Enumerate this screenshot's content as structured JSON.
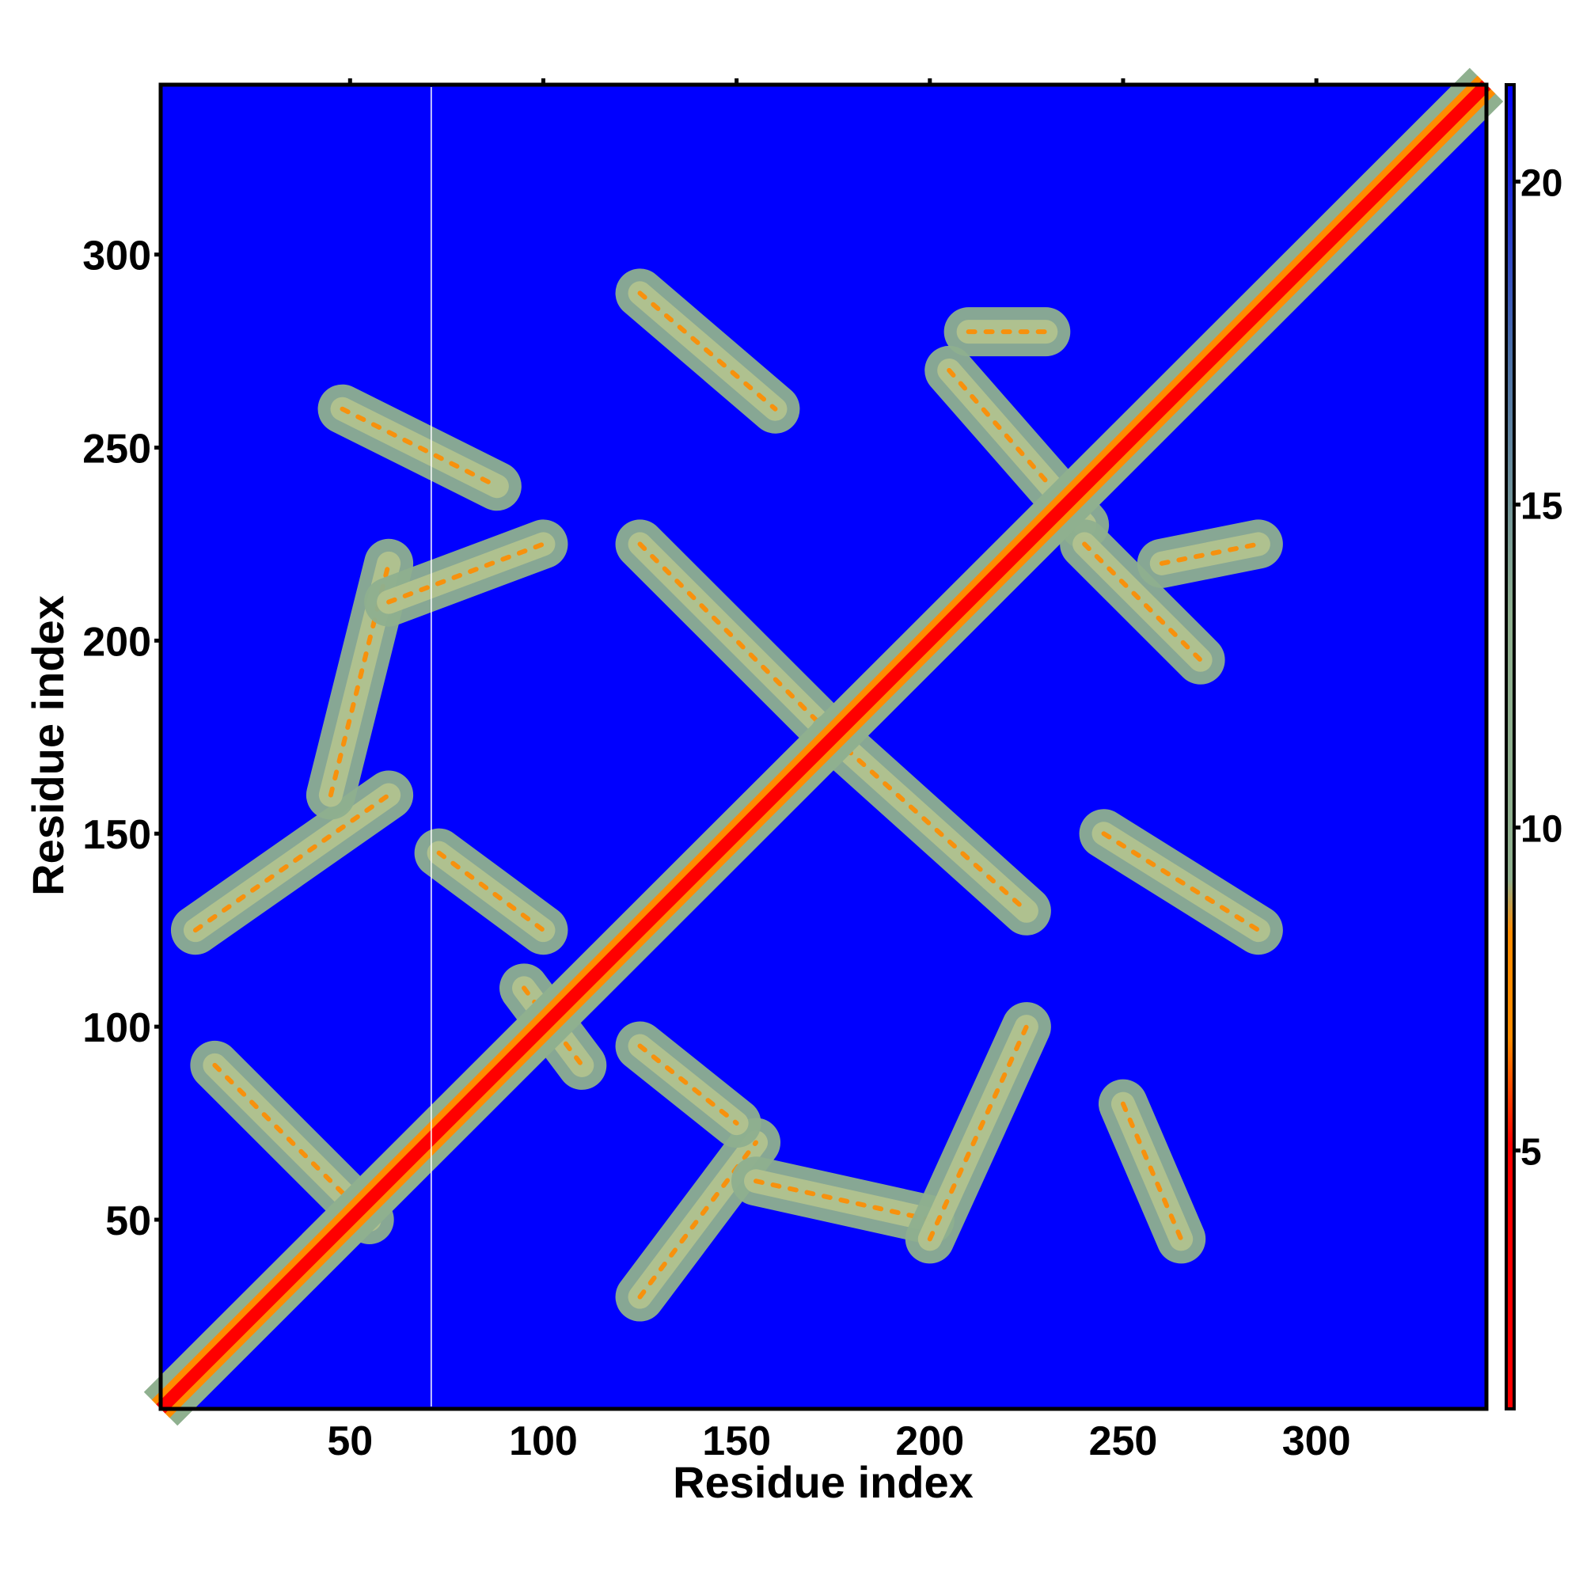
{
  "chart_data": {
    "type": "heatmap",
    "title": "",
    "xlabel": "Residue index",
    "ylabel": "Residue index",
    "xlim": [
      1,
      344
    ],
    "ylim": [
      1,
      344
    ],
    "x_ticks": [
      50,
      100,
      150,
      200,
      250,
      300
    ],
    "y_ticks": [
      50,
      100,
      150,
      200,
      250,
      300
    ],
    "x_tick_labels": [
      "50",
      "100",
      "150",
      "200",
      "250",
      "300"
    ],
    "y_tick_labels": [
      "50",
      "100",
      "150",
      "200",
      "250",
      "300"
    ],
    "colorbar": {
      "range": [
        1,
        21.5
      ],
      "ticks": [
        5,
        10,
        15,
        20
      ],
      "tick_labels": [
        "5",
        "10",
        "15",
        "20"
      ],
      "colors": [
        "#ff0000",
        "#ff8c00",
        "#8fb08f",
        "#4a6fa8",
        "#0000ff"
      ]
    },
    "diagonal_line": true,
    "vertical_marker_x": 71,
    "contact_bands": [
      {
        "from": [
          10,
          125
        ],
        "to": [
          60,
          160
        ]
      },
      {
        "from": [
          45,
          160
        ],
        "to": [
          60,
          220
        ]
      },
      {
        "from": [
          60,
          210
        ],
        "to": [
          100,
          225
        ]
      },
      {
        "from": [
          48,
          260
        ],
        "to": [
          88,
          240
        ]
      },
      {
        "from": [
          73,
          145
        ],
        "to": [
          100,
          125
        ]
      },
      {
        "from": [
          125,
          290
        ],
        "to": [
          160,
          260
        ]
      },
      {
        "from": [
          125,
          225
        ],
        "to": [
          175,
          175
        ]
      },
      {
        "from": [
          175,
          175
        ],
        "to": [
          225,
          130
        ]
      },
      {
        "from": [
          205,
          270
        ],
        "to": [
          240,
          230
        ]
      },
      {
        "from": [
          210,
          280
        ],
        "to": [
          230,
          280
        ]
      },
      {
        "from": [
          240,
          225
        ],
        "to": [
          270,
          195
        ]
      },
      {
        "from": [
          260,
          220
        ],
        "to": [
          285,
          225
        ]
      },
      {
        "from": [
          245,
          150
        ],
        "to": [
          285,
          125
        ]
      },
      {
        "from": [
          125,
          30
        ],
        "to": [
          155,
          70
        ]
      },
      {
        "from": [
          155,
          60
        ],
        "to": [
          200,
          50
        ]
      },
      {
        "from": [
          200,
          45
        ],
        "to": [
          225,
          100
        ]
      },
      {
        "from": [
          125,
          95
        ],
        "to": [
          150,
          75
        ]
      },
      {
        "from": [
          250,
          80
        ],
        "to": [
          265,
          45
        ]
      },
      {
        "from": [
          15,
          90
        ],
        "to": [
          55,
          50
        ]
      },
      {
        "from": [
          95,
          110
        ],
        "to": [
          110,
          90
        ]
      }
    ]
  }
}
